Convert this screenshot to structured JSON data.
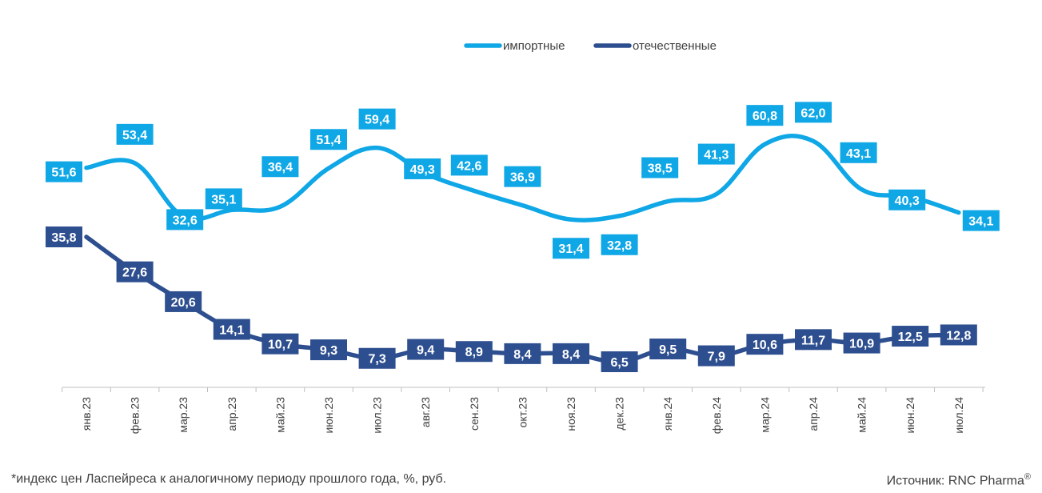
{
  "chart_data": {
    "type": "line",
    "categories": [
      "янв.23",
      "фев.23",
      "мар.23",
      "апр.23",
      "май.23",
      "июн.23",
      "июл.23",
      "авг.23",
      "сен.23",
      "окт.23",
      "ноя.23",
      "дек.23",
      "янв.24",
      "фев.24",
      "мар.24",
      "апр.24",
      "май.24",
      "июн.24",
      "июл.24"
    ],
    "series": [
      {
        "name": "импортные",
        "color": "#0fa7e6",
        "values": [
          51.6,
          53.4,
          32.6,
          35.1,
          36.4,
          51.4,
          59.4,
          49.3,
          42.6,
          36.9,
          31.4,
          32.8,
          38.5,
          41.3,
          60.8,
          62.0,
          43.1,
          40.3,
          34.1
        ],
        "labels": [
          "51,6",
          "53,4",
          "32,6",
          "35,1",
          "36,4",
          "51,4",
          "59,4",
          "49,3",
          "42,6",
          "36,9",
          "31,4",
          "32,8",
          "38,5",
          "41,3",
          "60,8",
          "62,0",
          "43,1",
          "40,3",
          "34,1"
        ]
      },
      {
        "name": "отечественные",
        "color": "#2e4f8f",
        "values": [
          35.8,
          27.6,
          20.6,
          14.1,
          10.7,
          9.3,
          7.3,
          9.4,
          8.9,
          8.4,
          8.4,
          6.5,
          9.5,
          7.9,
          10.6,
          11.7,
          10.9,
          12.5,
          12.8
        ],
        "labels": [
          "35,8",
          "27,6",
          "20,6",
          "14,1",
          "10,7",
          "9,3",
          "7,3",
          "9,4",
          "8,9",
          "8,4",
          "8,4",
          "6,5",
          "9,5",
          "7,9",
          "10,6",
          "11,7",
          "10,9",
          "12,5",
          "12,8"
        ]
      }
    ],
    "legend": "top-center",
    "grid": false
  },
  "footnote": "*индекс цен Ласпейреса к аналогичному периоду прошлого года, %, руб.",
  "source": "Источник: RNC Pharma",
  "source_mark": "®"
}
